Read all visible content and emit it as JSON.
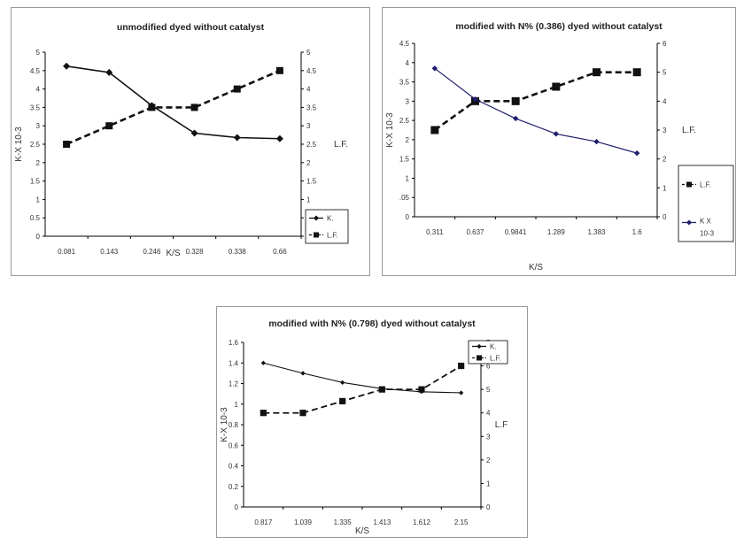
{
  "colors": {
    "axis": "#000000",
    "series_black": "#111111",
    "series_navy": "#1f1f6e",
    "background": "#ffffff"
  },
  "chart_data": [
    {
      "type": "line",
      "title": "unmodified dyed without catalyst",
      "xlabel": "K/S",
      "ylabel": "K-X 10-3",
      "y2label": "L.F.",
      "categories": [
        "0.081",
        "0.143",
        "0.246",
        "0.328",
        "0.338",
        "0.66"
      ],
      "ylim": [
        0,
        5
      ],
      "y2lim": [
        0,
        5
      ],
      "yticks": [
        "0",
        "0.5",
        "1",
        "1.5",
        "2",
        "2.5",
        "3",
        "3.5",
        "4",
        "4.5",
        "5"
      ],
      "y2ticks": [
        "0",
        "0.5",
        "1",
        "1.5",
        "2",
        "2.5",
        "3",
        "3.5",
        "4",
        "4.5",
        "5"
      ],
      "grid": false,
      "legend": "bottom-right",
      "series": [
        {
          "name": "K.",
          "axis": "left",
          "marker": "diamond",
          "dashed": false,
          "values": [
            4.62,
            4.45,
            3.55,
            2.8,
            2.68,
            2.65
          ]
        },
        {
          "name": "L.F.",
          "axis": "right",
          "marker": "square",
          "dashed": true,
          "values": [
            2.5,
            3.0,
            3.5,
            3.5,
            4.0,
            4.5
          ]
        }
      ]
    },
    {
      "type": "line",
      "title": "modified with N% (0.386) dyed without catalyst",
      "xlabel": "K/S",
      "ylabel": "K-X 10-3",
      "y2label": "L.F.",
      "categories": [
        "0.311",
        "0.637",
        "0.9841",
        "1.289",
        "1.383",
        "1.6"
      ],
      "ylim": [
        0,
        4.5
      ],
      "y2lim": [
        0,
        6
      ],
      "yticks": [
        "0",
        ".05",
        "1",
        "1.5",
        "2",
        "2.5",
        "3",
        "3.5",
        "4",
        "4.5"
      ],
      "y2ticks": [
        "0",
        "1",
        "2",
        "3",
        "4",
        "5",
        "6"
      ],
      "grid": false,
      "legend": "right",
      "series": [
        {
          "name": "L.F.",
          "axis": "right",
          "marker": "square",
          "dashed": true,
          "values": [
            3,
            4,
            4,
            4.5,
            5,
            5
          ]
        },
        {
          "name": "K X 10-3",
          "axis": "left",
          "marker": "diamond",
          "dashed": false,
          "values": [
            3.85,
            3.05,
            2.55,
            2.15,
            1.95,
            1.65
          ]
        }
      ]
    },
    {
      "type": "line",
      "title": "modified with N% (0.798) dyed without catalyst",
      "xlabel": "K/S",
      "ylabel": "K-X 10-3",
      "y2label": "L.F",
      "categories": [
        "0.817",
        "1.039",
        "1.335",
        "1.413",
        "1.612",
        "2.15"
      ],
      "ylim": [
        0,
        1.6
      ],
      "y2lim": [
        0,
        7
      ],
      "yticks": [
        "0",
        "0.2",
        "0.4",
        "0.6",
        "0.8",
        "1",
        "1.2",
        "1.4",
        "1.6"
      ],
      "y2ticks": [
        "0",
        "1",
        "2",
        "3",
        "4",
        "5",
        "6",
        "7"
      ],
      "grid": false,
      "legend": "top-right",
      "series": [
        {
          "name": "K.",
          "axis": "left",
          "marker": "diamond",
          "dashed": false,
          "values": [
            1.4,
            1.3,
            1.21,
            1.15,
            1.12,
            1.11
          ]
        },
        {
          "name": "L.F.",
          "axis": "right",
          "marker": "square",
          "dashed": true,
          "values": [
            4,
            4,
            4.5,
            5,
            5,
            6
          ]
        }
      ]
    }
  ]
}
